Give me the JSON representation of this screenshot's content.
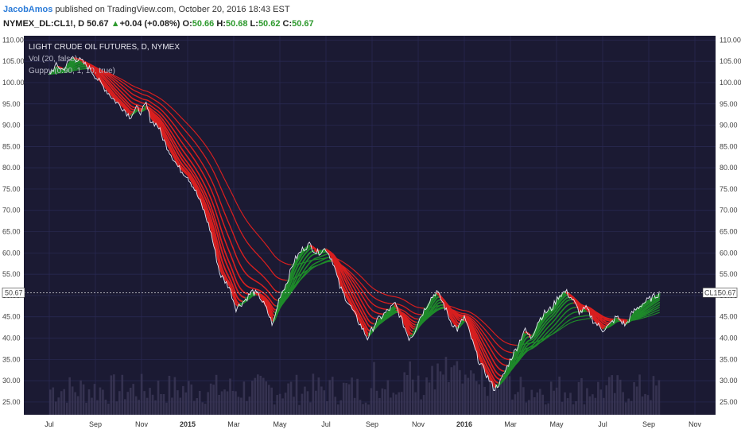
{
  "header": {
    "author": "JacobAmos",
    "published_text": "published on TradingView.com, October 20, 2016 18:43 EST",
    "symbol": "NYMEX_DL:CL1!, D",
    "last": "50.67",
    "change_arrow": "▲",
    "change": "+0.04 (+0.08%)",
    "o_label": "O:",
    "o_value": "50.66",
    "h_label": "H:",
    "h_value": "50.68",
    "l_label": "L:",
    "l_value": "50.62",
    "c_label": "C:",
    "c_value": "50.67"
  },
  "chart_data": {
    "type": "line",
    "title": "LIGHT CRUDE OIL FUTURES, D, NYMEX",
    "studies": [
      "Vol (20, false)",
      "Guppy (0.90, 1, 10, true)"
    ],
    "y_ticks": [
      "110.00",
      "105.00",
      "100.00",
      "95.00",
      "90.00",
      "85.00",
      "80.00",
      "75.00",
      "70.00",
      "65.00",
      "60.00",
      "55.00",
      "50.00",
      "45.00",
      "40.00",
      "35.00",
      "30.00",
      "25.00"
    ],
    "ylim": [
      22,
      111
    ],
    "x_ticks": [
      {
        "label": "Jul",
        "bold": false
      },
      {
        "label": "Sep",
        "bold": false
      },
      {
        "label": "Nov",
        "bold": false
      },
      {
        "label": "2015",
        "bold": true
      },
      {
        "label": "Mar",
        "bold": false
      },
      {
        "label": "May",
        "bold": false
      },
      {
        "label": "Jul",
        "bold": false
      },
      {
        "label": "Sep",
        "bold": false
      },
      {
        "label": "Nov",
        "bold": false
      },
      {
        "label": "2016",
        "bold": true
      },
      {
        "label": "Mar",
        "bold": false
      },
      {
        "label": "May",
        "bold": false
      },
      {
        "label": "Jul",
        "bold": false
      },
      {
        "label": "Sep",
        "bold": false
      },
      {
        "label": "Nov",
        "bold": false
      }
    ],
    "crosshair_price": "50.67",
    "last_price_label": "CL1!",
    "last_price_value": "50.67",
    "price_series": {
      "name": "CL1!",
      "x": [
        0,
        0.3,
        0.6,
        1.0,
        1.4,
        1.8,
        2.2,
        2.5,
        2.8,
        3.0,
        3.2,
        3.5,
        3.8,
        4.0,
        4.2,
        4.4,
        4.7,
        5.0,
        5.3,
        5.6,
        6.0,
        6.3,
        6.7,
        7.0,
        7.4,
        7.8,
        8.1,
        8.5,
        8.8,
        9.1,
        9.4,
        9.7,
        10.0,
        10.3,
        10.6,
        11.0,
        11.3,
        11.6,
        12.0,
        12.3,
        12.6,
        13.0,
        13.4,
        13.8,
        14.2,
        14.6,
        15.0,
        15.3,
        15.6,
        15.8,
        16.0,
        16.2,
        16.5,
        16.8,
        17.1,
        17.4,
        17.7,
        18.0,
        18.3,
        18.6,
        19.0,
        19.3,
        19.6,
        20.0,
        20.3,
        20.6,
        20.9,
        21.2,
        21.5,
        21.8,
        22.1,
        22.4,
        22.7,
        23.0,
        23.3,
        23.6,
        24.0,
        24.3,
        24.6,
        25.0,
        25.3,
        25.7,
        26.0,
        26.3,
        26.5
      ],
      "y": [
        102,
        104,
        103,
        106,
        105,
        103,
        100,
        98,
        96,
        95,
        94,
        92,
        94,
        93,
        95,
        91,
        90,
        86,
        83,
        80,
        78,
        75,
        70,
        65,
        55,
        52,
        47,
        49,
        51,
        50,
        47,
        43,
        50,
        53,
        58,
        61,
        62,
        60,
        61,
        58,
        52,
        48,
        44,
        40,
        44,
        46,
        48,
        44,
        40,
        41,
        44,
        46,
        49,
        51,
        48,
        44,
        42,
        45,
        40,
        35,
        31,
        28,
        30,
        35,
        38,
        42,
        40,
        44,
        46,
        47,
        50,
        51,
        49,
        46,
        47,
        44,
        42,
        43,
        45,
        43,
        46,
        48,
        49,
        50,
        50.67
      ]
    }
  }
}
